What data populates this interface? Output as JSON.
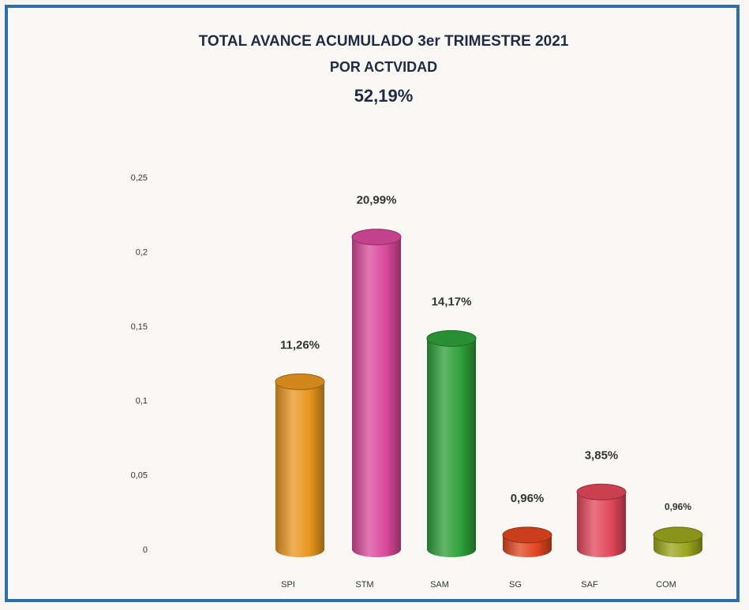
{
  "chart_data": {
    "type": "bar",
    "title": "TOTAL AVANCE ACUMULADO  3er  TRIMESTRE 2021",
    "subtitle": "POR ACTVIDAD",
    "total_label": "52,19%",
    "categories": [
      "SPI",
      "STM",
      "SAM",
      "SG",
      "SAF",
      "COM"
    ],
    "values": [
      0.1126,
      0.2099,
      0.1417,
      0.0096,
      0.0385,
      0.0096
    ],
    "data_labels": [
      "11,26%",
      "20,99%",
      "14,17%",
      "0,96%",
      "3,85%",
      "0,96%"
    ],
    "colors": [
      "#e8961e",
      "#d9499b",
      "#2e9f3a",
      "#e0451f",
      "#e2475a",
      "#9aa41c"
    ],
    "y_ticks": [
      "0",
      "0,05",
      "0,1",
      "0,15",
      "0,2",
      "0,25"
    ],
    "ylim": [
      0,
      0.25
    ],
    "grid": false,
    "legend": "none"
  }
}
